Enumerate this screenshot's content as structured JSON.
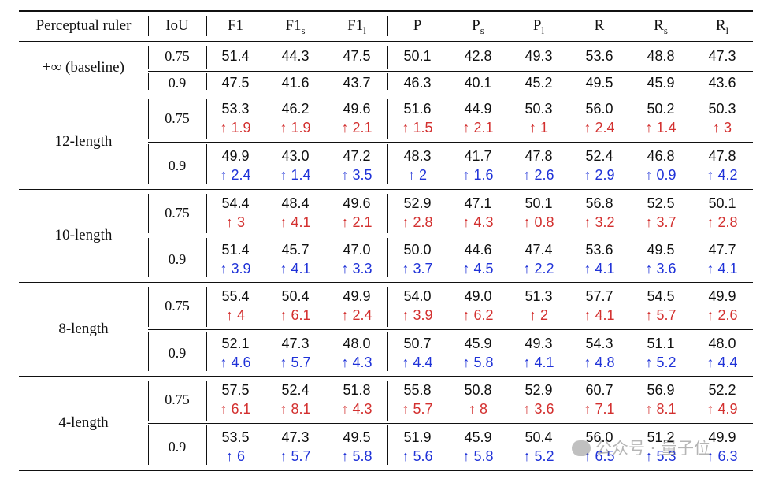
{
  "headers": [
    {
      "main": "Perceptual ruler",
      "sub": ""
    },
    {
      "main": "IoU",
      "sub": ""
    },
    {
      "main": "F1",
      "sub": ""
    },
    {
      "main": "F1",
      "sub": "s"
    },
    {
      "main": "F1",
      "sub": "l"
    },
    {
      "main": "P",
      "sub": ""
    },
    {
      "main": "P",
      "sub": "s"
    },
    {
      "main": "P",
      "sub": "l"
    },
    {
      "main": "R",
      "sub": ""
    },
    {
      "main": "R",
      "sub": "s"
    },
    {
      "main": "R",
      "sub": "l"
    }
  ],
  "colors": {
    "increase_075": "#d3302f",
    "increase_09": "#1f32d8"
  },
  "groups": [
    {
      "label": "+∞ (baseline)",
      "rows": [
        {
          "iou": "0.75",
          "values": [
            "51.4",
            "44.3",
            "47.5",
            "50.1",
            "42.8",
            "49.3",
            "53.6",
            "48.8",
            "47.3"
          ],
          "deltas": []
        },
        {
          "iou": "0.9",
          "values": [
            "47.5",
            "41.6",
            "43.7",
            "46.3",
            "40.1",
            "45.2",
            "49.5",
            "45.9",
            "43.6"
          ],
          "deltas": []
        }
      ]
    },
    {
      "label": "12-length",
      "rows": [
        {
          "iou": "0.75",
          "values": [
            "53.3",
            "46.2",
            "49.6",
            "51.6",
            "44.9",
            "50.3",
            "56.0",
            "50.2",
            "50.3"
          ],
          "deltas": [
            "↑ 1.9",
            "↑ 1.9",
            "↑ 2.1",
            "↑ 1.5",
            "↑ 2.1",
            "↑ 1",
            "↑ 2.4",
            "↑ 1.4",
            "↑ 3"
          ]
        },
        {
          "iou": "0.9",
          "values": [
            "49.9",
            "43.0",
            "47.2",
            "48.3",
            "41.7",
            "47.8",
            "52.4",
            "46.8",
            "47.8"
          ],
          "deltas": [
            "↑ 2.4",
            "↑ 1.4",
            "↑ 3.5",
            "↑ 2",
            "↑ 1.6",
            "↑ 2.6",
            "↑ 2.9",
            "↑ 0.9",
            "↑ 4.2"
          ]
        }
      ]
    },
    {
      "label": "10-length",
      "rows": [
        {
          "iou": "0.75",
          "values": [
            "54.4",
            "48.4",
            "49.6",
            "52.9",
            "47.1",
            "50.1",
            "56.8",
            "52.5",
            "50.1"
          ],
          "deltas": [
            "↑ 3",
            "↑ 4.1",
            "↑ 2.1",
            "↑ 2.8",
            "↑ 4.3",
            "↑ 0.8",
            "↑ 3.2",
            "↑ 3.7",
            "↑ 2.8"
          ]
        },
        {
          "iou": "0.9",
          "values": [
            "51.4",
            "45.7",
            "47.0",
            "50.0",
            "44.6",
            "47.4",
            "53.6",
            "49.5",
            "47.7"
          ],
          "deltas": [
            "↑ 3.9",
            "↑ 4.1",
            "↑ 3.3",
            "↑ 3.7",
            "↑ 4.5",
            "↑ 2.2",
            "↑ 4.1",
            "↑ 3.6",
            "↑ 4.1"
          ]
        }
      ]
    },
    {
      "label": "8-length",
      "rows": [
        {
          "iou": "0.75",
          "values": [
            "55.4",
            "50.4",
            "49.9",
            "54.0",
            "49.0",
            "51.3",
            "57.7",
            "54.5",
            "49.9"
          ],
          "deltas": [
            "↑ 4",
            "↑ 6.1",
            "↑ 2.4",
            "↑ 3.9",
            "↑ 6.2",
            "↑ 2",
            "↑ 4.1",
            "↑ 5.7",
            "↑ 2.6"
          ]
        },
        {
          "iou": "0.9",
          "values": [
            "52.1",
            "47.3",
            "48.0",
            "50.7",
            "45.9",
            "49.3",
            "54.3",
            "51.1",
            "48.0"
          ],
          "deltas": [
            "↑ 4.6",
            "↑ 5.7",
            "↑ 4.3",
            "↑ 4.4",
            "↑ 5.8",
            "↑ 4.1",
            "↑ 4.8",
            "↑ 5.2",
            "↑ 4.4"
          ]
        }
      ]
    },
    {
      "label": "4-length",
      "rows": [
        {
          "iou": "0.75",
          "values": [
            "57.5",
            "52.4",
            "51.8",
            "55.8",
            "50.8",
            "52.9",
            "60.7",
            "56.9",
            "52.2"
          ],
          "deltas": [
            "↑ 6.1",
            "↑ 8.1",
            "↑ 4.3",
            "↑ 5.7",
            "↑ 8",
            "↑ 3.6",
            "↑ 7.1",
            "↑ 8.1",
            "↑ 4.9"
          ]
        },
        {
          "iou": "0.9",
          "values": [
            "53.5",
            "47.3",
            "49.5",
            "51.9",
            "45.9",
            "50.4",
            "56.0",
            "51.2",
            "49.9"
          ],
          "deltas": [
            "↑ 6",
            "↑ 5.7",
            "↑ 5.8",
            "↑ 5.6",
            "↑ 5.8",
            "↑ 5.2",
            "↑ 6.5",
            "↑ 5.3",
            "↑ 6.3"
          ]
        }
      ]
    }
  ],
  "watermark": "公众号 · 量子位"
}
